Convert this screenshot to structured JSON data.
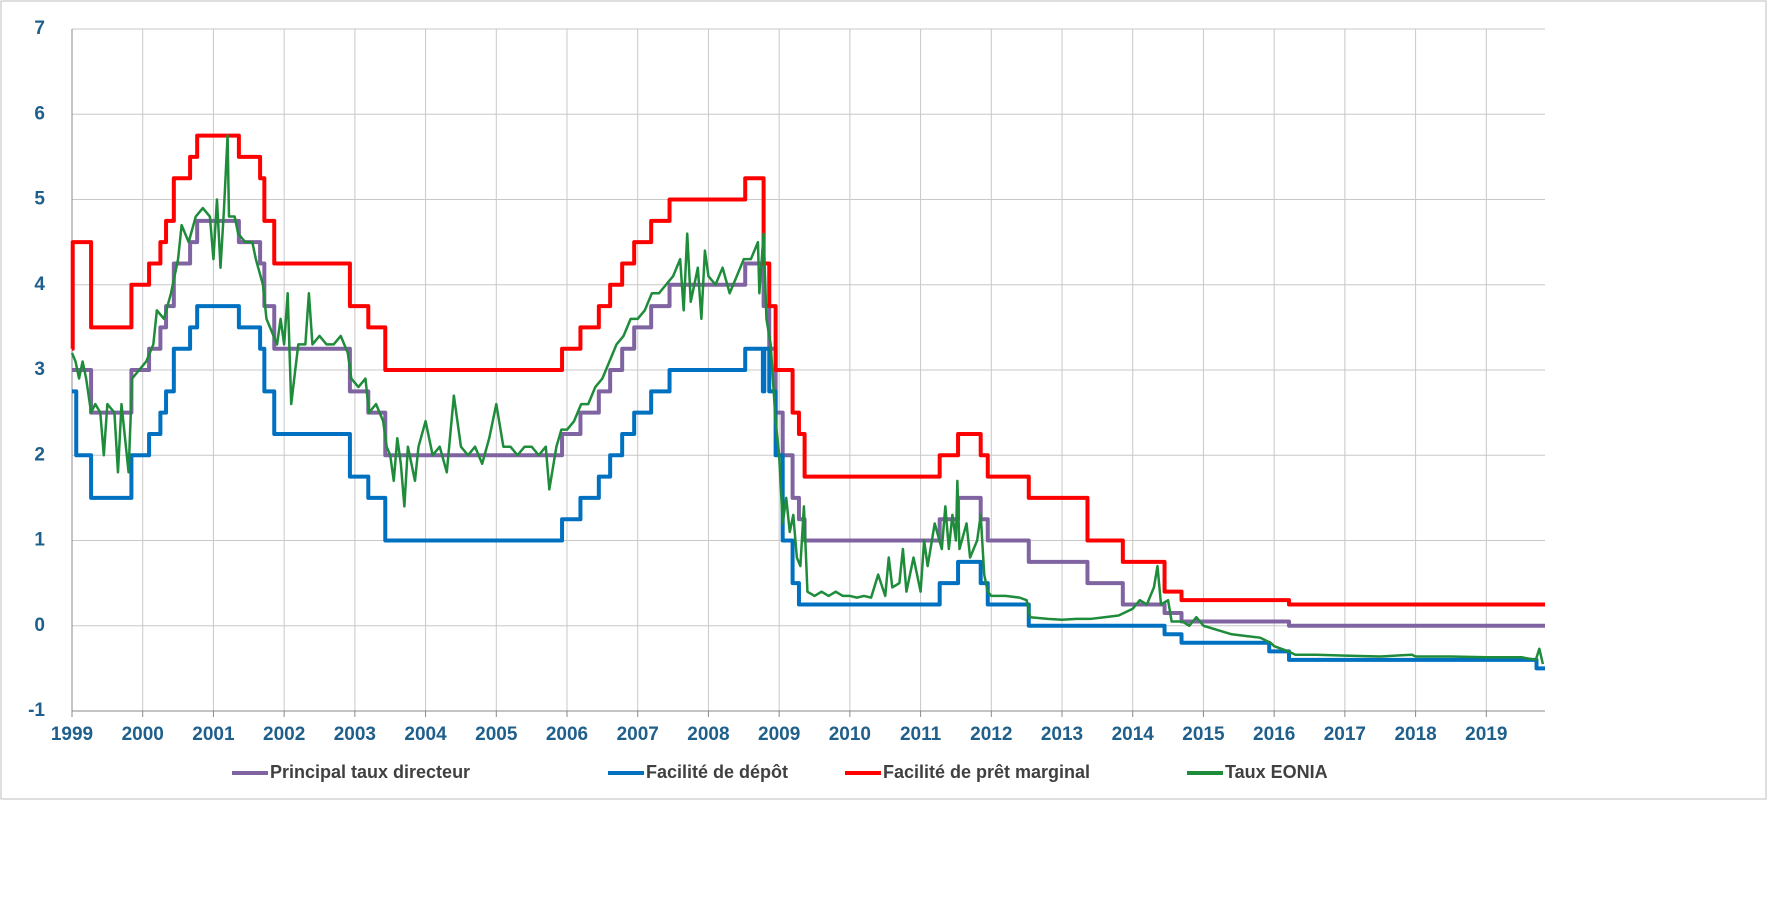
{
  "chart_data": {
    "type": "line",
    "xlim": [
      1999,
      2019.83
    ],
    "xticks": [
      1999,
      2000,
      2001,
      2002,
      2003,
      2004,
      2005,
      2006,
      2007,
      2008,
      2009,
      2010,
      2011,
      2012,
      2013,
      2014,
      2015,
      2016,
      2017,
      2018,
      2019
    ],
    "ylim": [
      -1,
      7
    ],
    "yticks": [
      -1,
      0,
      1,
      2,
      3,
      4,
      5,
      6,
      7
    ],
    "grid": true,
    "legend": "bottom",
    "series": [
      {
        "name": "Principal taux directeur",
        "color": "#8064a2",
        "step": true,
        "x": [
          1999,
          1999.27,
          1999.84,
          2000.09,
          2000.25,
          2000.33,
          2000.44,
          2000.67,
          2000.77,
          2001.36,
          2001.66,
          2001.72,
          2001.86,
          2002.93,
          2003.19,
          2003.43,
          2005.93,
          2006.19,
          2006.45,
          2006.61,
          2006.78,
          2006.95,
          2007.19,
          2007.45,
          2008.52,
          2008.78,
          2008.86,
          2008.95,
          2009.05,
          2009.19,
          2009.28,
          2009.36,
          2011.27,
          2011.53,
          2011.85,
          2011.95,
          2012.53,
          2013.36,
          2013.86,
          2014.45,
          2014.69,
          2016.21,
          2019.83
        ],
        "values": [
          3,
          2.5,
          3,
          3.25,
          3.5,
          3.75,
          4.25,
          4.5,
          4.75,
          4.5,
          4.25,
          3.75,
          3.25,
          2.75,
          2.5,
          2,
          2.25,
          2.5,
          2.75,
          3,
          3.25,
          3.5,
          3.75,
          4,
          4.25,
          3.75,
          3.25,
          2.5,
          2,
          1.5,
          1.25,
          1,
          1.25,
          1.5,
          1.25,
          1,
          0.75,
          0.5,
          0.25,
          0.15,
          0.05,
          0,
          0
        ]
      },
      {
        "name": "Facilité de dépôt",
        "color": "#0070c0",
        "step": true,
        "x": [
          1999,
          1999.06,
          1999.27,
          1999.84,
          2000.09,
          2000.25,
          2000.33,
          2000.44,
          2000.67,
          2000.77,
          2001.36,
          2001.66,
          2001.72,
          2001.86,
          2002.93,
          2003.19,
          2003.43,
          2005.93,
          2006.19,
          2006.45,
          2006.61,
          2006.78,
          2006.95,
          2007.19,
          2007.45,
          2008.52,
          2008.77,
          2008.79,
          2008.86,
          2008.95,
          2009.05,
          2009.19,
          2009.28,
          2011.27,
          2011.53,
          2011.85,
          2011.95,
          2012.53,
          2014.45,
          2014.69,
          2015.93,
          2016.21,
          2019.71,
          2019.83
        ],
        "values": [
          2.75,
          2,
          1.5,
          2,
          2.25,
          2.5,
          2.75,
          3.25,
          3.5,
          3.75,
          3.5,
          3.25,
          2.75,
          2.25,
          1.75,
          1.5,
          1,
          1.25,
          1.5,
          1.75,
          2,
          2.25,
          2.5,
          2.75,
          3,
          3.25,
          2.75,
          3.25,
          2.75,
          2,
          1,
          0.5,
          0.25,
          0.5,
          0.75,
          0.5,
          0.25,
          0,
          -0.1,
          -0.2,
          -0.3,
          -0.4,
          -0.5,
          -0.5
        ]
      },
      {
        "name": "Facilité de prêt marginal",
        "color": "#ff0000",
        "step": true,
        "x": [
          1999,
          1999.01,
          1999.27,
          1999.84,
          2000.09,
          2000.25,
          2000.33,
          2000.44,
          2000.67,
          2000.77,
          2001.36,
          2001.66,
          2001.72,
          2001.86,
          2002.93,
          2003.19,
          2003.43,
          2005.93,
          2006.19,
          2006.45,
          2006.61,
          2006.78,
          2006.95,
          2007.19,
          2007.45,
          2008.52,
          2008.78,
          2008.86,
          2008.95,
          2009.19,
          2009.28,
          2009.36,
          2011.27,
          2011.53,
          2011.85,
          2011.95,
          2012.53,
          2013.36,
          2013.86,
          2014.45,
          2014.69,
          2016.21,
          2019.83
        ],
        "values": [
          3.25,
          4.5,
          3.5,
          4,
          4.25,
          4.5,
          4.75,
          5.25,
          5.5,
          5.75,
          5.5,
          5.25,
          4.75,
          4.25,
          3.75,
          3.5,
          3,
          3.25,
          3.5,
          3.75,
          4,
          4.25,
          4.5,
          4.75,
          5,
          5.25,
          4.25,
          3.75,
          3,
          2.5,
          2.25,
          1.75,
          2,
          2.25,
          2,
          1.75,
          1.5,
          1,
          0.75,
          0.4,
          0.3,
          0.25,
          0.25
        ]
      },
      {
        "name": "Taux EONIA",
        "color": "#1e8c3a",
        "step": false,
        "x": [
          1999,
          1999.05,
          1999.1,
          1999.15,
          1999.2,
          1999.27,
          1999.33,
          1999.4,
          1999.45,
          1999.5,
          1999.6,
          1999.65,
          1999.7,
          1999.8,
          1999.85,
          1999.95,
          2000.05,
          2000.15,
          2000.2,
          2000.3,
          2000.4,
          2000.5,
          2000.55,
          2000.65,
          2000.75,
          2000.85,
          2000.95,
          2001,
          2001.05,
          2001.1,
          2001.15,
          2001.2,
          2001.22,
          2001.3,
          2001.35,
          2001.45,
          2001.55,
          2001.6,
          2001.7,
          2001.75,
          2001.85,
          2001.9,
          2001.95,
          2002,
          2002.05,
          2002.1,
          2002.2,
          2002.3,
          2002.35,
          2002.4,
          2002.5,
          2002.6,
          2002.7,
          2002.8,
          2002.9,
          2002.95,
          2003.05,
          2003.15,
          2003.2,
          2003.3,
          2003.4,
          2003.45,
          2003.5,
          2003.55,
          2003.6,
          2003.65,
          2003.7,
          2003.75,
          2003.85,
          2003.9,
          2004,
          2004.1,
          2004.2,
          2004.3,
          2004.4,
          2004.5,
          2004.6,
          2004.7,
          2004.8,
          2004.9,
          2005,
          2005.1,
          2005.2,
          2005.3,
          2005.4,
          2005.5,
          2005.6,
          2005.7,
          2005.75,
          2005.85,
          2005.92,
          2006,
          2006.1,
          2006.2,
          2006.3,
          2006.4,
          2006.5,
          2006.6,
          2006.7,
          2006.8,
          2006.9,
          2007,
          2007.1,
          2007.2,
          2007.3,
          2007.4,
          2007.5,
          2007.6,
          2007.65,
          2007.7,
          2007.75,
          2007.85,
          2007.9,
          2007.95,
          2008,
          2008.1,
          2008.2,
          2008.3,
          2008.4,
          2008.5,
          2008.6,
          2008.7,
          2008.72,
          2008.78,
          2008.82,
          2008.88,
          2008.95,
          2009,
          2009.05,
          2009.1,
          2009.15,
          2009.2,
          2009.25,
          2009.3,
          2009.35,
          2009.4,
          2009.5,
          2009.6,
          2009.7,
          2009.8,
          2009.9,
          2010,
          2010.1,
          2010.2,
          2010.3,
          2010.4,
          2010.5,
          2010.55,
          2010.6,
          2010.7,
          2010.75,
          2010.8,
          2010.9,
          2011,
          2011.05,
          2011.1,
          2011.2,
          2011.3,
          2011.35,
          2011.4,
          2011.45,
          2011.5,
          2011.52,
          2011.55,
          2011.65,
          2011.7,
          2011.8,
          2011.85,
          2011.9,
          2011.95,
          2012,
          2012.2,
          2012.4,
          2012.5,
          2012.55,
          2012.8,
          2013,
          2013.2,
          2013.4,
          2013.6,
          2013.8,
          2014,
          2014.1,
          2014.2,
          2014.3,
          2014.35,
          2014.4,
          2014.5,
          2014.55,
          2014.7,
          2014.8,
          2014.9,
          2015,
          2015.2,
          2015.4,
          2015.6,
          2015.8,
          2015.95,
          2016,
          2016.2,
          2016.3,
          2016.6,
          2017,
          2017.5,
          2017.95,
          2018,
          2018.5,
          2019,
          2019.5,
          2019.7,
          2019.75,
          2019.8
        ],
        "values": [
          3.2,
          3.1,
          2.9,
          3.1,
          2.9,
          2.5,
          2.6,
          2.5,
          2,
          2.6,
          2.5,
          1.8,
          2.6,
          1.8,
          2.9,
          3,
          3.1,
          3.3,
          3.7,
          3.6,
          3.9,
          4.3,
          4.7,
          4.5,
          4.8,
          4.9,
          4.8,
          4.3,
          5,
          4.2,
          4.9,
          5.75,
          4.8,
          4.8,
          4.6,
          4.5,
          4.5,
          4.3,
          4,
          3.6,
          3.4,
          3.3,
          3.6,
          3.3,
          3.9,
          2.6,
          3.3,
          3.3,
          3.9,
          3.3,
          3.4,
          3.3,
          3.3,
          3.4,
          3.2,
          2.9,
          2.8,
          2.9,
          2.5,
          2.6,
          2.4,
          2.1,
          2,
          1.7,
          2.2,
          1.9,
          1.4,
          2.1,
          1.7,
          2.1,
          2.4,
          2,
          2.1,
          1.8,
          2.7,
          2.1,
          2,
          2.1,
          1.9,
          2.2,
          2.6,
          2.1,
          2.1,
          2,
          2.1,
          2.1,
          2,
          2.1,
          1.6,
          2.1,
          2.3,
          2.3,
          2.4,
          2.6,
          2.6,
          2.8,
          2.9,
          3.1,
          3.3,
          3.4,
          3.6,
          3.6,
          3.7,
          3.9,
          3.9,
          4,
          4.1,
          4.3,
          3.7,
          4.6,
          3.8,
          4.2,
          3.6,
          4.4,
          4.1,
          4,
          4.2,
          3.9,
          4.1,
          4.3,
          4.3,
          4.5,
          3.9,
          4.6,
          3.6,
          3.3,
          2.4,
          2,
          1.2,
          1.5,
          1.1,
          1.3,
          0.8,
          0.7,
          1.4,
          0.4,
          0.35,
          0.4,
          0.35,
          0.4,
          0.35,
          0.35,
          0.33,
          0.35,
          0.33,
          0.6,
          0.35,
          0.8,
          0.45,
          0.5,
          0.9,
          0.4,
          0.8,
          0.4,
          1,
          0.7,
          1.2,
          0.9,
          1.4,
          0.9,
          1.3,
          1,
          1.7,
          0.9,
          1.2,
          0.8,
          1,
          1.3,
          0.6,
          0.4,
          0.35,
          0.35,
          0.33,
          0.3,
          0.1,
          0.08,
          0.07,
          0.08,
          0.08,
          0.1,
          0.12,
          0.2,
          0.3,
          0.25,
          0.45,
          0.7,
          0.25,
          0.3,
          0.05,
          0.05,
          0,
          0.1,
          0,
          -0.05,
          -0.1,
          -0.12,
          -0.14,
          -0.2,
          -0.24,
          -0.3,
          -0.34,
          -0.34,
          -0.35,
          -0.36,
          -0.34,
          -0.36,
          -0.36,
          -0.37,
          -0.37,
          -0.4,
          -0.27,
          -0.45
        ]
      }
    ]
  }
}
